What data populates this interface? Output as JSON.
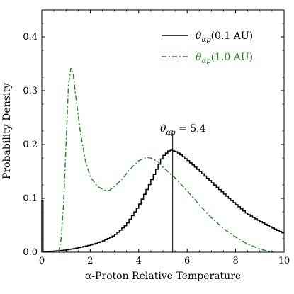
{
  "chart_data": {
    "type": "line",
    "xlabel": "α-Proton Relative Temperature",
    "ylabel": "Probability Density",
    "xlim": [
      0,
      10
    ],
    "ylim": [
      0,
      0.45
    ],
    "xticks": [
      0,
      2,
      4,
      6,
      8,
      10
    ],
    "xtick_labels": [
      "0",
      "2",
      "4",
      "6",
      "8",
      "10"
    ],
    "yticks": [
      0.0,
      0.1,
      0.2,
      0.3,
      0.4
    ],
    "ytick_labels": [
      "0.0",
      "0.1",
      "0.2",
      "0.3",
      "0.4"
    ],
    "grid": false,
    "legend_position": "top-right",
    "series": [
      {
        "name": "θαp(0.1 AU)",
        "style": "solid-step",
        "color": "#000000",
        "x": [
          0.0,
          0.05,
          0.1,
          0.3,
          0.5,
          1.0,
          1.5,
          2.0,
          2.5,
          3.0,
          3.5,
          4.0,
          4.5,
          5.0,
          5.3,
          5.6,
          6.0,
          6.5,
          7.0,
          7.5,
          8.0,
          8.5,
          9.0,
          9.5,
          10.0
        ],
        "y": [
          0.095,
          0.095,
          0.001,
          0.001,
          0.002,
          0.004,
          0.008,
          0.013,
          0.02,
          0.031,
          0.051,
          0.085,
          0.13,
          0.178,
          0.19,
          0.186,
          0.172,
          0.152,
          0.131,
          0.11,
          0.09,
          0.071,
          0.058,
          0.046,
          0.035
        ]
      },
      {
        "name": "θαp(1.0 AU)",
        "style": "dash-dot",
        "color": "#228b22",
        "x": [
          0.7,
          0.8,
          0.9,
          1.0,
          1.1,
          1.2,
          1.3,
          1.4,
          1.6,
          1.8,
          2.0,
          2.3,
          2.6,
          2.8,
          3.0,
          3.3,
          3.6,
          4.0,
          4.3,
          4.5,
          4.8,
          5.0,
          5.5,
          6.0,
          6.5,
          7.0,
          7.5,
          8.0,
          8.5,
          9.0,
          9.4,
          9.6
        ],
        "y": [
          0.0,
          0.025,
          0.09,
          0.2,
          0.31,
          0.342,
          0.33,
          0.29,
          0.22,
          0.17,
          0.14,
          0.122,
          0.115,
          0.115,
          0.122,
          0.135,
          0.152,
          0.17,
          0.176,
          0.175,
          0.168,
          0.158,
          0.138,
          0.114,
          0.088,
          0.064,
          0.044,
          0.028,
          0.015,
          0.006,
          0.001,
          0.0
        ]
      }
    ],
    "annotation": {
      "x": 5.4,
      "line_top": 0.22,
      "label": "θαp = 5.4"
    }
  }
}
